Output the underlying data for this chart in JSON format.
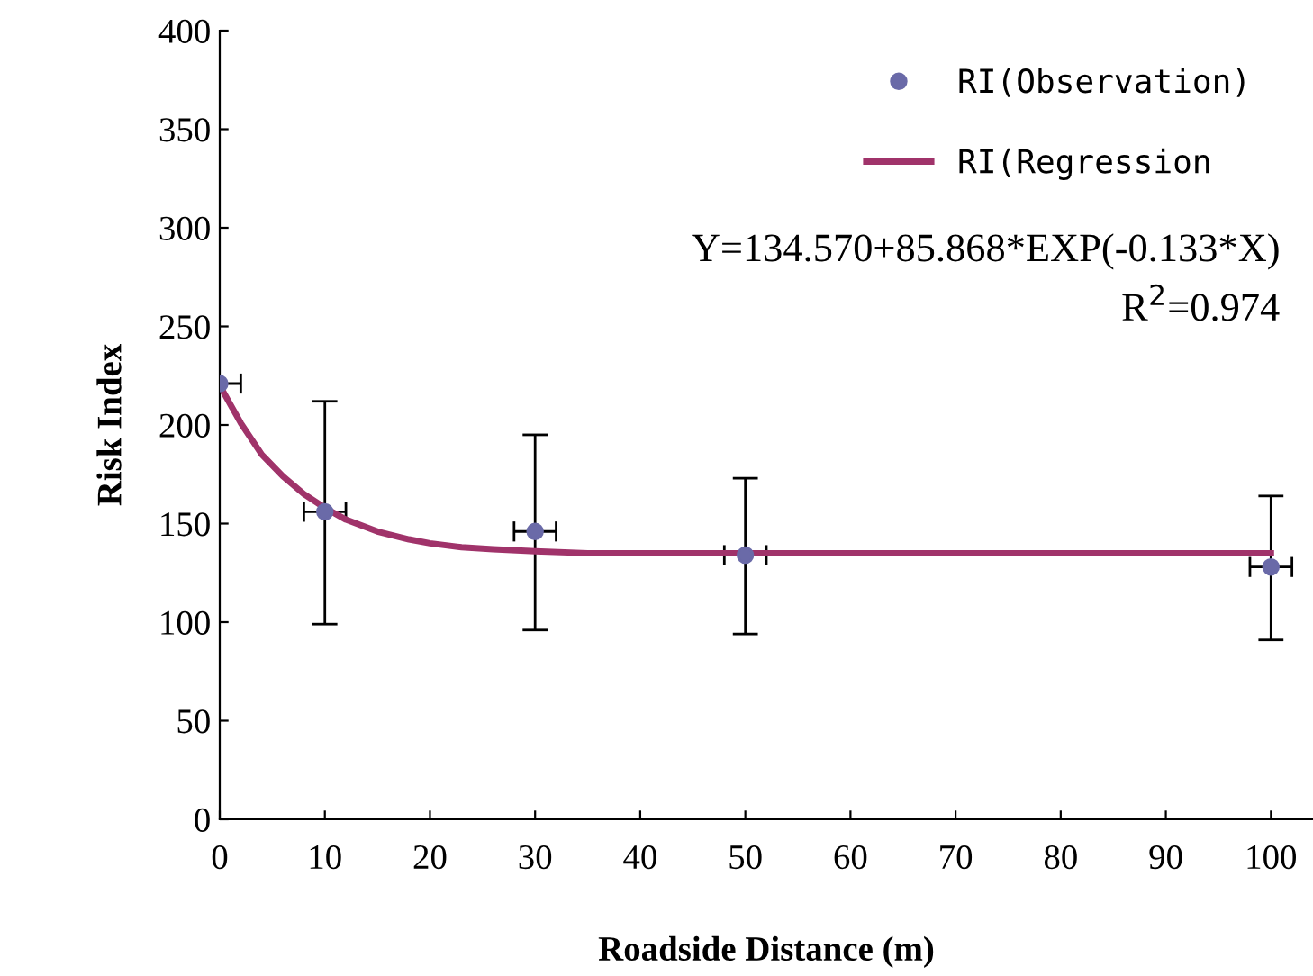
{
  "chart_data": {
    "type": "scatter",
    "xlabel": "Roadside Distance (m)",
    "ylabel": "Risk Index",
    "xlim": [
      0,
      104
    ],
    "xticks": [
      0,
      10,
      20,
      30,
      40,
      50,
      60,
      70,
      80,
      90,
      100
    ],
    "ylim": [
      0,
      400
    ],
    "yticks": [
      0,
      50,
      100,
      150,
      200,
      250,
      300,
      350,
      400
    ],
    "grid": false,
    "legend": "top right",
    "annotations": [
      "Y=134.570+85.868*EXP(-0.133*X)",
      "R$^{2}$=0.974"
    ],
    "series": [
      {
        "name": "RI(Observation)",
        "color": "#6a6aa8",
        "marker": "circle",
        "x": [
          0,
          10,
          30,
          50,
          100
        ],
        "values": [
          221,
          156,
          146,
          134,
          128
        ],
        "errors": [
          null,
          [
            99,
            212
          ],
          [
            96,
            195
          ],
          [
            94,
            173
          ],
          [
            91,
            164
          ]
        ],
        "xerrors": [
          2,
          2,
          2,
          2,
          2
        ]
      },
      {
        "name": "RI(Regression",
        "type": "line",
        "color": "#a0336a",
        "marker": "none",
        "line_style": "solid",
        "x": [
          0,
          2,
          4,
          6,
          8,
          10,
          12,
          15,
          18,
          20,
          23,
          26,
          30,
          35,
          40,
          50,
          60,
          70,
          80,
          90,
          100
        ],
        "values": [
          220,
          201,
          185,
          174,
          165,
          158,
          152,
          146,
          142,
          140,
          138,
          137,
          136,
          135,
          135,
          135,
          135,
          135,
          135,
          135,
          135
        ]
      }
    ]
  }
}
